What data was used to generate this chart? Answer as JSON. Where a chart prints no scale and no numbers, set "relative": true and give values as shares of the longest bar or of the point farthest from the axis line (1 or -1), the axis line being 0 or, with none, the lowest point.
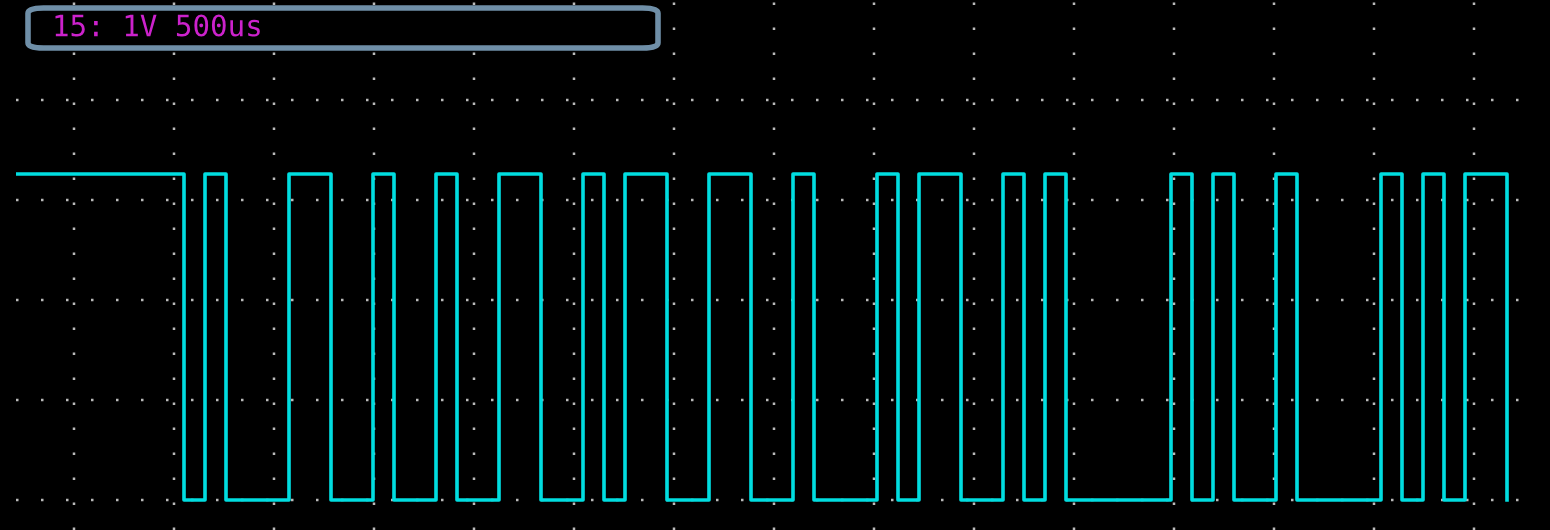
{
  "chart_data": {
    "type": "step",
    "title": "15: 1V 500us",
    "relative": true,
    "grid": true,
    "color": "#00dde0",
    "categories": [
      null,
      null,
      null,
      null,
      null,
      null,
      null,
      null,
      null,
      null,
      null,
      null,
      null,
      null,
      null,
      null,
      null,
      null,
      null,
      null,
      null,
      null,
      null,
      null,
      null,
      null,
      null,
      null,
      null,
      null,
      null,
      null,
      null,
      null,
      null,
      null,
      null,
      null,
      null,
      null,
      null,
      null,
      null,
      null,
      null,
      null,
      null,
      null,
      null,
      null,
      null,
      null,
      null,
      null,
      null,
      null,
      null,
      null,
      null,
      null,
      null,
      null,
      null,
      null,
      null,
      null,
      null,
      null,
      null,
      null,
      null,
      null
    ],
    "values": [
      1,
      1,
      1,
      1,
      1,
      1,
      1,
      1,
      0,
      1,
      0,
      0,
      0,
      1,
      1,
      0,
      0,
      1,
      0,
      0,
      1,
      0,
      0,
      1,
      1,
      0,
      0,
      1,
      0,
      1,
      1,
      0,
      0,
      1,
      1,
      0,
      0,
      1,
      0,
      0,
      0,
      1,
      0,
      1,
      1,
      0,
      0,
      1,
      0,
      1,
      0,
      0,
      0,
      0,
      0,
      1,
      0,
      1,
      0,
      0,
      1,
      0,
      0,
      0,
      0,
      1,
      0,
      1,
      0,
      1,
      1,
      0
    ]
  }
}
